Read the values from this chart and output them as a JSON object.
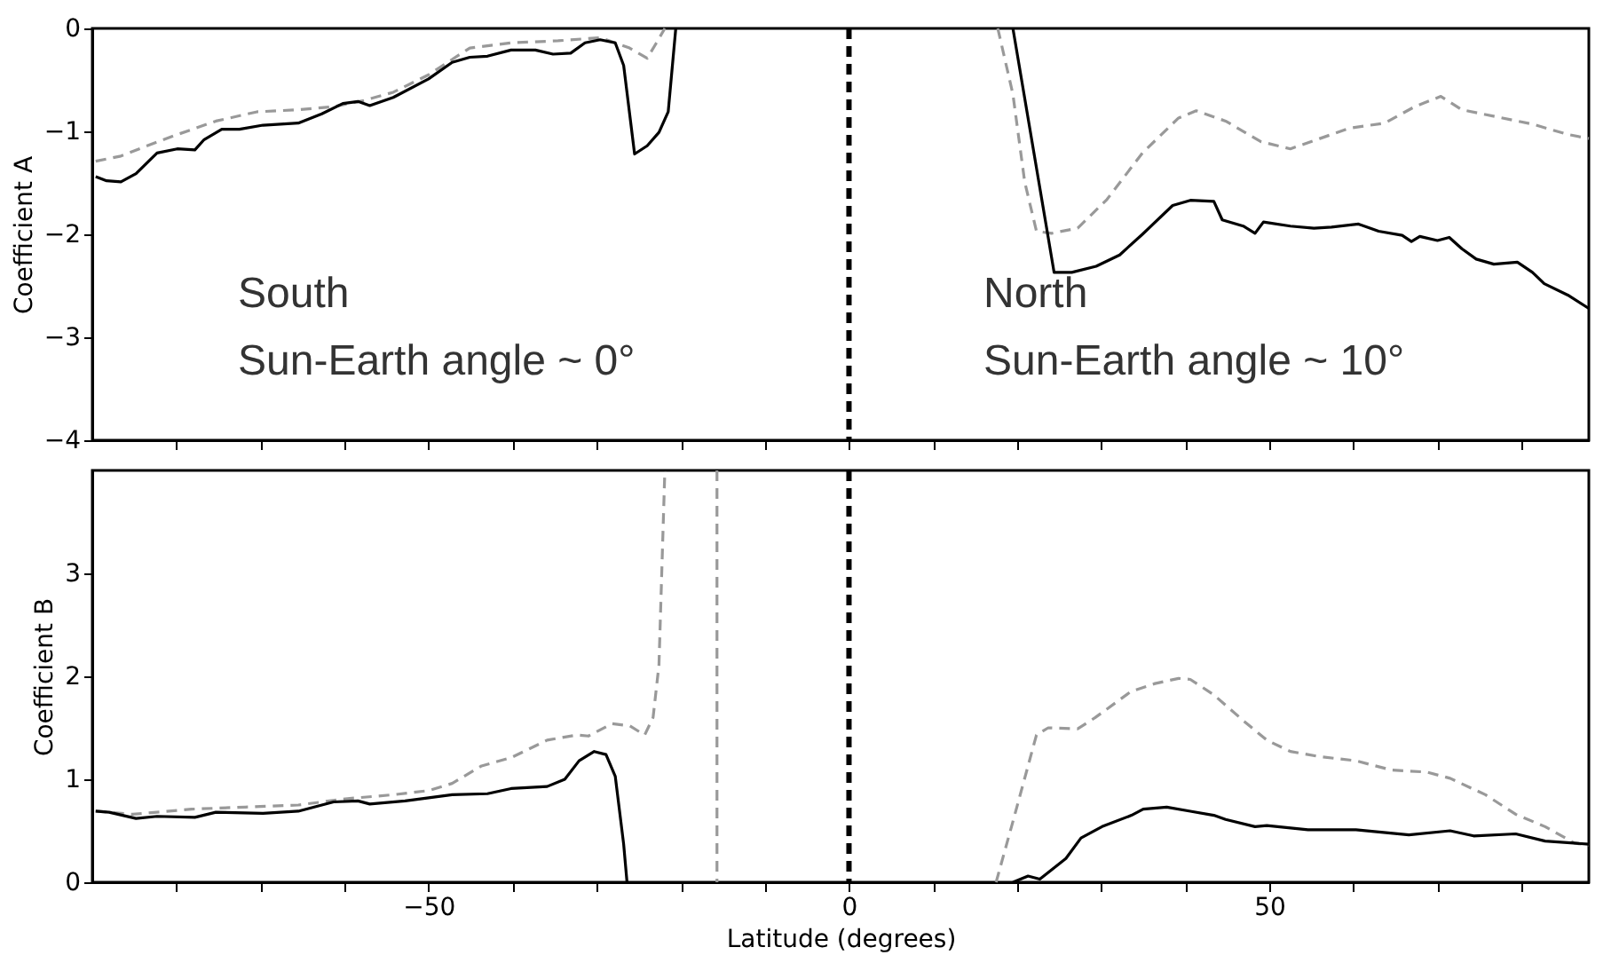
{
  "chart_data": [
    {
      "type": "line",
      "ylabel": "Coefficient A",
      "xlim": [
        -90,
        88
      ],
      "ylim": [
        -4,
        0
      ],
      "xticks": [
        {
          "value": -80,
          "label": null
        },
        {
          "value": -70,
          "label": null
        },
        {
          "value": -60,
          "label": null
        },
        {
          "value": -50,
          "label": null
        },
        {
          "value": -40,
          "label": null
        },
        {
          "value": -30,
          "label": null
        },
        {
          "value": -20,
          "label": null
        },
        {
          "value": -10,
          "label": null
        },
        {
          "value": 0,
          "label": null
        },
        {
          "value": 10,
          "label": null
        },
        {
          "value": 20,
          "label": null
        },
        {
          "value": 30,
          "label": null
        },
        {
          "value": 40,
          "label": null
        },
        {
          "value": 50,
          "label": null
        },
        {
          "value": 60,
          "label": null
        },
        {
          "value": 70,
          "label": null
        },
        {
          "value": 80,
          "label": null
        }
      ],
      "yticks": [
        -4,
        -3,
        -2,
        -1,
        0
      ],
      "tick_labels": "y",
      "grid": false,
      "ref_lines": [
        {
          "axis": "x",
          "value": 0,
          "label": null,
          "color": "#000000",
          "line_style": "dashed"
        }
      ],
      "annotations": [
        "South",
        "Sun-Earth angle ~ 0°",
        "North",
        "Sun-Earth angle ~ 10°"
      ],
      "series": [
        {
          "color": "#999999",
          "line_style": "dashed",
          "x": [
            -89.6,
            -86.6,
            -83.8,
            -80.2,
            -75.3,
            -70.4,
            -65.5,
            -61.3,
            -57.7,
            -54.2,
            -50,
            -45.1,
            -40.2,
            -34.6,
            -29.6,
            -26.1,
            -24.0,
            -22.9,
            -21.9
          ],
          "values": [
            -1.29,
            -1.24,
            -1.15,
            -1.04,
            -0.9,
            -0.81,
            -0.79,
            -0.76,
            -0.7,
            -0.62,
            -0.45,
            -0.19,
            -0.14,
            -0.12,
            -0.09,
            -0.19,
            -0.29,
            -0.14,
            0.0
          ]
        },
        {
          "color": "#999999",
          "line_style": "dashed",
          "x": [
            17.7,
            19.5,
            20.9,
            22.3,
            24.1,
            27.2,
            30.7,
            34.9,
            39.2,
            41.3,
            44.8,
            49.0,
            52.5,
            56.0,
            59.5,
            63.7,
            67.3,
            70.4,
            72.9,
            77.1,
            81.3,
            85.5,
            88.0
          ],
          "values": [
            0.0,
            -0.64,
            -1.49,
            -1.97,
            -1.99,
            -1.94,
            -1.66,
            -1.21,
            -0.87,
            -0.8,
            -0.9,
            -1.1,
            -1.17,
            -1.07,
            -0.97,
            -0.92,
            -0.76,
            -0.66,
            -0.79,
            -0.86,
            -0.93,
            -1.03,
            -1.07
          ]
        },
        {
          "color": "#000000",
          "line_style": "solid",
          "x": [
            -89.6,
            -88.3,
            -86.6,
            -84.8,
            -82.3,
            -79.9,
            -77.8,
            -76.7,
            -74.6,
            -72.5,
            -69.7,
            -65.5,
            -62.7,
            -60.2,
            -58.4,
            -57.0,
            -54.2,
            -50,
            -47.2,
            -45.1,
            -43.0,
            -40.2,
            -37.3,
            -35.2,
            -33.1,
            -31.4,
            -29.6,
            -27.8,
            -26.8,
            -25.5,
            -24.0,
            -22.6,
            -21.5,
            -20.6
          ],
          "values": [
            -1.44,
            -1.48,
            -1.49,
            -1.41,
            -1.21,
            -1.17,
            -1.18,
            -1.08,
            -0.98,
            -0.98,
            -0.94,
            -0.92,
            -0.83,
            -0.73,
            -0.71,
            -0.75,
            -0.67,
            -0.49,
            -0.33,
            -0.28,
            -0.27,
            -0.21,
            -0.21,
            -0.25,
            -0.24,
            -0.14,
            -0.11,
            -0.14,
            -0.36,
            -1.22,
            -1.14,
            -1.01,
            -0.81,
            0.0
          ]
        },
        {
          "color": "#000000",
          "line_style": "solid",
          "x": [
            19.5,
            24.4,
            26.5,
            29.4,
            32.2,
            34.9,
            38.5,
            40.6,
            43.4,
            44.4,
            46.9,
            48.3,
            49.3,
            52.5,
            55.3,
            57.4,
            60.6,
            63.0,
            65.8,
            66.9,
            67.9,
            70.0,
            71.4,
            72.9,
            74.6,
            76.7,
            79.5,
            81.3,
            82.7,
            85.5,
            88.0
          ],
          "values": [
            0.0,
            -2.37,
            -2.37,
            -2.31,
            -2.2,
            -2.0,
            -1.72,
            -1.67,
            -1.68,
            -1.86,
            -1.92,
            -1.99,
            -1.88,
            -1.92,
            -1.94,
            -1.93,
            -1.9,
            -1.97,
            -2.01,
            -2.07,
            -2.02,
            -2.06,
            -2.03,
            -2.14,
            -2.24,
            -2.29,
            -2.27,
            -2.37,
            -2.48,
            -2.59,
            -2.72
          ]
        }
      ]
    },
    {
      "type": "line",
      "ylabel": "Coefficient B",
      "xlabel": "Latitude (degrees)",
      "xlim": [
        -90,
        88
      ],
      "ylim": [
        0,
        4
      ],
      "xticks": [
        {
          "value": -80,
          "label": null
        },
        {
          "value": -70,
          "label": null
        },
        {
          "value": -60,
          "label": null
        },
        -50,
        {
          "value": -40,
          "label": null
        },
        {
          "value": -30,
          "label": null
        },
        {
          "value": -20,
          "label": null
        },
        {
          "value": -10,
          "label": null
        },
        0,
        {
          "value": 10,
          "label": null
        },
        {
          "value": 20,
          "label": null
        },
        {
          "value": 30,
          "label": null
        },
        {
          "value": 40,
          "label": null
        },
        50,
        {
          "value": 60,
          "label": null
        },
        {
          "value": 70,
          "label": null
        },
        {
          "value": 80,
          "label": null
        }
      ],
      "yticks": [
        0,
        1,
        2,
        3
      ],
      "grid": false,
      "ref_lines": [
        {
          "axis": "x",
          "value": 0,
          "label": null,
          "color": "#000000",
          "line_style": "dashed"
        }
      ],
      "series": [
        {
          "color": "#999999",
          "line_style": "dashed",
          "x": [
            -89.6,
            -85.2,
            -78.2,
            -71.8,
            -65.5,
            -59.9,
            -54.2,
            -50,
            -47.2,
            -43.7,
            -40.2,
            -35.9,
            -32.4,
            -31.0,
            -28.2,
            -26.1,
            -24.3,
            -23.3,
            -22.6,
            -21.9
          ],
          "values": [
            0.69,
            0.66,
            0.71,
            0.73,
            0.75,
            0.81,
            0.85,
            0.89,
            0.96,
            1.13,
            1.21,
            1.38,
            1.43,
            1.42,
            1.54,
            1.52,
            1.43,
            1.6,
            2.11,
            4.0
          ]
        },
        {
          "color": "#999999",
          "line_style": "dashed",
          "x": [
            -15.7,
            -15.7
          ],
          "values": [
            4.0,
            0.0
          ]
        },
        {
          "color": "#999999",
          "line_style": "dashed",
          "x": [
            17.5,
            19.5,
            22.3,
            23.7,
            27.2,
            29.3,
            33.5,
            36.4,
            39.2,
            40.6,
            43.4,
            46.9,
            49.7,
            52.5,
            56.0,
            60.3,
            64.5,
            68.7,
            71.5,
            75.7,
            79.3,
            82.8,
            86.3,
            88.0
          ],
          "values": [
            0.0,
            0.59,
            1.43,
            1.5,
            1.49,
            1.6,
            1.85,
            1.93,
            1.98,
            1.97,
            1.82,
            1.57,
            1.38,
            1.27,
            1.22,
            1.18,
            1.09,
            1.07,
            1.01,
            0.85,
            0.66,
            0.54,
            0.38,
            0.36
          ]
        },
        {
          "color": "#000000",
          "line_style": "solid",
          "x": [
            -89.6,
            -88.0,
            -84.8,
            -82.3,
            -77.8,
            -75.3,
            -69.7,
            -65.5,
            -61.3,
            -58.4,
            -57.0,
            -52.8,
            -50,
            -47.2,
            -43.0,
            -40.2,
            -35.9,
            -33.8,
            -32.1,
            -30.3,
            -28.9,
            -27.8,
            -26.8,
            -26.4
          ],
          "values": [
            0.69,
            0.68,
            0.62,
            0.64,
            0.63,
            0.68,
            0.67,
            0.69,
            0.78,
            0.79,
            0.76,
            0.79,
            0.82,
            0.85,
            0.86,
            0.91,
            0.93,
            1.0,
            1.18,
            1.27,
            1.24,
            1.03,
            0.37,
            0.0
          ]
        },
        {
          "color": "#000000",
          "line_style": "solid",
          "x": [
            19.5,
            21.3,
            22.7,
            25.8,
            27.6,
            30.1,
            33.6,
            35.0,
            37.8,
            40.6,
            43.4,
            44.8,
            48.3,
            49.7,
            54.6,
            60.3,
            66.6,
            71.5,
            74.3,
            79.3,
            82.8,
            88.0
          ],
          "values": [
            0.0,
            0.06,
            0.03,
            0.23,
            0.43,
            0.54,
            0.65,
            0.71,
            0.73,
            0.69,
            0.65,
            0.61,
            0.54,
            0.55,
            0.51,
            0.51,
            0.46,
            0.5,
            0.45,
            0.47,
            0.4,
            0.37
          ]
        }
      ]
    }
  ]
}
